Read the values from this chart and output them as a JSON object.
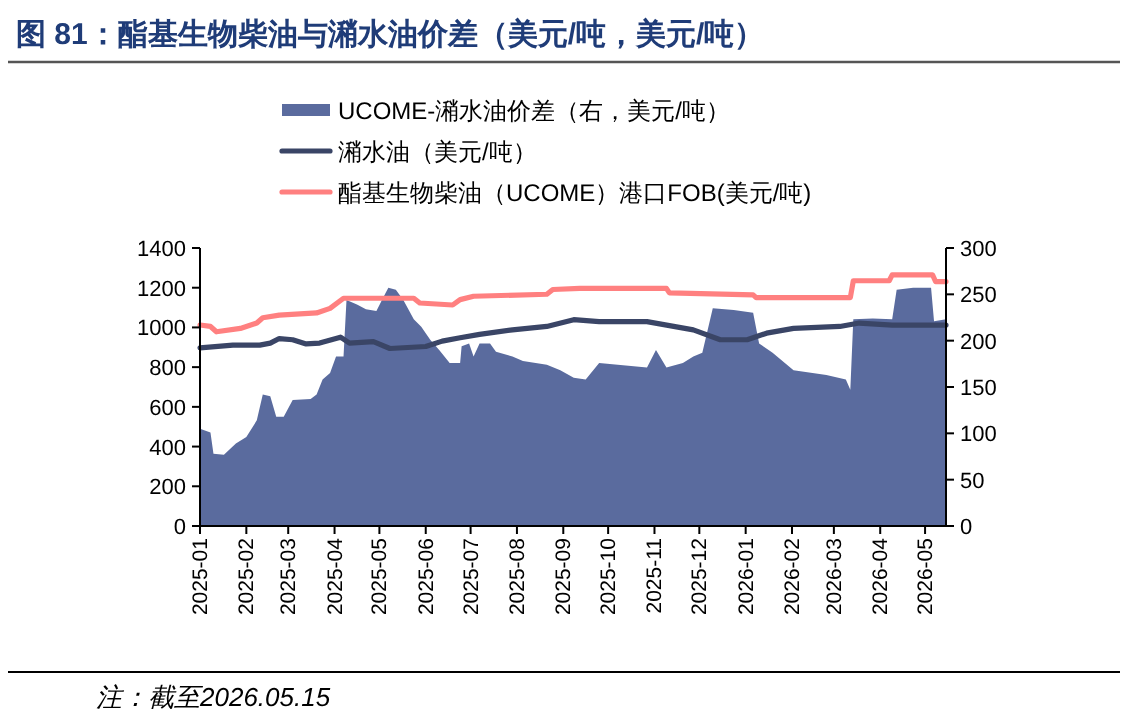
{
  "chart_data": {
    "type": "line",
    "title": "图 81：酯基生物柴油与潲水油价差（美元/吨，美元/吨）",
    "xlim": [
      "2025-01-01",
      "2026-05-15"
    ],
    "xticks": [
      {
        "value": "2025-01",
        "label": "2025-01"
      },
      {
        "value": "2025-02",
        "label": "2025-02"
      },
      {
        "value": "2025-03",
        "label": "2025-03"
      },
      {
        "value": "2025-04",
        "label": "2025-04"
      },
      {
        "value": "2025-05",
        "label": "2025-05"
      },
      {
        "value": "2025-06",
        "label": "2025-06"
      },
      {
        "value": "2025-07",
        "label": "2025-07"
      },
      {
        "value": "2025-08",
        "label": "2025-08"
      },
      {
        "value": "2025-09",
        "label": "2025-09"
      },
      {
        "value": "2025-10",
        "label": "2025-10"
      },
      {
        "value": "2025-11",
        "label": "2025-11"
      },
      {
        "value": "2025-12",
        "label": "2025-12"
      },
      {
        "value": "2026-01",
        "label": "2026-01"
      },
      {
        "value": "2026-02",
        "label": "2026-02"
      },
      {
        "value": "2026-03",
        "label": "2026-03"
      },
      {
        "value": "2026-04",
        "label": "2026-04"
      },
      {
        "value": "2026-05",
        "label": "2026-05"
      }
    ],
    "ylim": [
      0,
      1400
    ],
    "yticks": [
      0,
      200,
      400,
      600,
      800,
      1000,
      1200,
      1400
    ],
    "y2lim": [
      0,
      300
    ],
    "y2ticks": [
      0,
      50,
      100,
      150,
      200,
      250,
      300
    ],
    "legend": "top",
    "series": [
      {
        "name": "UCOME-潲水油价差（右，美元/吨）",
        "type": "area",
        "axis": "y2",
        "color": "#5a6b9e",
        "x": [
          "2025-01-01",
          "2025-01-08",
          "2025-01-10",
          "2025-01-17",
          "2025-01-25",
          "2025-02-01",
          "2025-02-08",
          "2025-02-12",
          "2025-02-17",
          "2025-02-21",
          "2025-02-26",
          "2025-03-04",
          "2025-03-16",
          "2025-03-20",
          "2025-03-24",
          "2025-03-29",
          "2025-04-02",
          "2025-04-07",
          "2025-04-09",
          "2025-04-16",
          "2025-04-22",
          "2025-04-29",
          "2025-05-04",
          "2025-05-07",
          "2025-05-12",
          "2025-05-17",
          "2025-05-24",
          "2025-05-29",
          "2025-06-04",
          "2025-06-10",
          "2025-06-17",
          "2025-06-24",
          "2025-06-25",
          "2025-06-30",
          "2025-07-03",
          "2025-07-07",
          "2025-07-14",
          "2025-07-18",
          "2025-07-29",
          "2025-08-05",
          "2025-08-21",
          "2025-08-30",
          "2025-09-08",
          "2025-09-16",
          "2025-09-25",
          "2025-10-27",
          "2025-11-02",
          "2025-11-09",
          "2025-11-20",
          "2025-11-27",
          "2025-12-03",
          "2025-12-10",
          "2025-12-24",
          "2026-01-06",
          "2026-01-10",
          "2026-01-19",
          "2026-02-02",
          "2026-02-24",
          "2026-03-09",
          "2026-03-12",
          "2026-03-14",
          "2026-03-27",
          "2026-04-09",
          "2026-04-12",
          "2026-04-23",
          "2026-05-05",
          "2026-05-07",
          "2026-05-15"
        ],
        "values": [
          105,
          101,
          78,
          77,
          89,
          96,
          114,
          142,
          140,
          118,
          118,
          136,
          137,
          142,
          158,
          165,
          183,
          183,
          244,
          239,
          234,
          232,
          248,
          257,
          255,
          244,
          223,
          215,
          201,
          190,
          176,
          176,
          194,
          197,
          183,
          197,
          197,
          188,
          183,
          178,
          174,
          168,
          160,
          158,
          176,
          171,
          190,
          171,
          176,
          183,
          187,
          235,
          233,
          230,
          197,
          187,
          168,
          163,
          158,
          147,
          223,
          224,
          223,
          255,
          257,
          257,
          221,
          223
        ]
      },
      {
        "name": "潲水油（美元/吨）",
        "type": "line",
        "color": "#3a4566",
        "x": [
          "2025-01-01",
          "2025-01-23",
          "2025-02-10",
          "2025-02-17",
          "2025-02-23",
          "2025-03-04",
          "2025-03-13",
          "2025-03-22",
          "2025-04-05",
          "2025-04-11",
          "2025-04-27",
          "2025-05-08",
          "2025-06-01",
          "2025-06-12",
          "2025-06-24",
          "2025-07-07",
          "2025-07-29",
          "2025-08-21",
          "2025-09-08",
          "2025-09-25",
          "2025-10-27",
          "2025-11-27",
          "2025-12-15",
          "2026-01-02",
          "2026-01-15",
          "2026-02-02",
          "2026-03-05",
          "2026-03-18",
          "2026-04-09",
          "2026-05-15"
        ],
        "values": [
          897,
          911,
          911,
          921,
          944,
          938,
          917,
          921,
          951,
          921,
          928,
          894,
          904,
          931,
          948,
          965,
          988,
          1005,
          1039,
          1029,
          1029,
          988,
          938,
          938,
          971,
          995,
          1005,
          1022,
          1012,
          1012
        ]
      },
      {
        "name": "酯基生物柴油（UCOME）港口FOB(美元/吨)",
        "type": "line",
        "color": "#ff8080",
        "x": [
          "2025-01-01",
          "2025-01-08",
          "2025-01-12",
          "2025-01-28",
          "2025-02-08",
          "2025-02-12",
          "2025-02-23",
          "2025-03-20",
          "2025-03-29",
          "2025-04-07",
          "2025-05-24",
          "2025-05-28",
          "2025-06-19",
          "2025-06-24",
          "2025-07-03",
          "2025-08-21",
          "2025-08-25",
          "2025-09-12",
          "2025-11-09",
          "2025-11-11",
          "2026-01-06",
          "2026-01-08",
          "2026-03-12",
          "2026-03-14",
          "2026-04-07",
          "2026-04-09",
          "2026-05-06",
          "2026-05-08",
          "2026-05-15"
        ],
        "values": [
          1012,
          1005,
          978,
          995,
          1022,
          1049,
          1062,
          1073,
          1096,
          1147,
          1147,
          1123,
          1113,
          1140,
          1157,
          1167,
          1191,
          1197,
          1197,
          1174,
          1164,
          1150,
          1150,
          1235,
          1235,
          1265,
          1265,
          1231,
          1231
        ]
      }
    ],
    "annotations": [
      "注：截至2026.05.15"
    ]
  }
}
